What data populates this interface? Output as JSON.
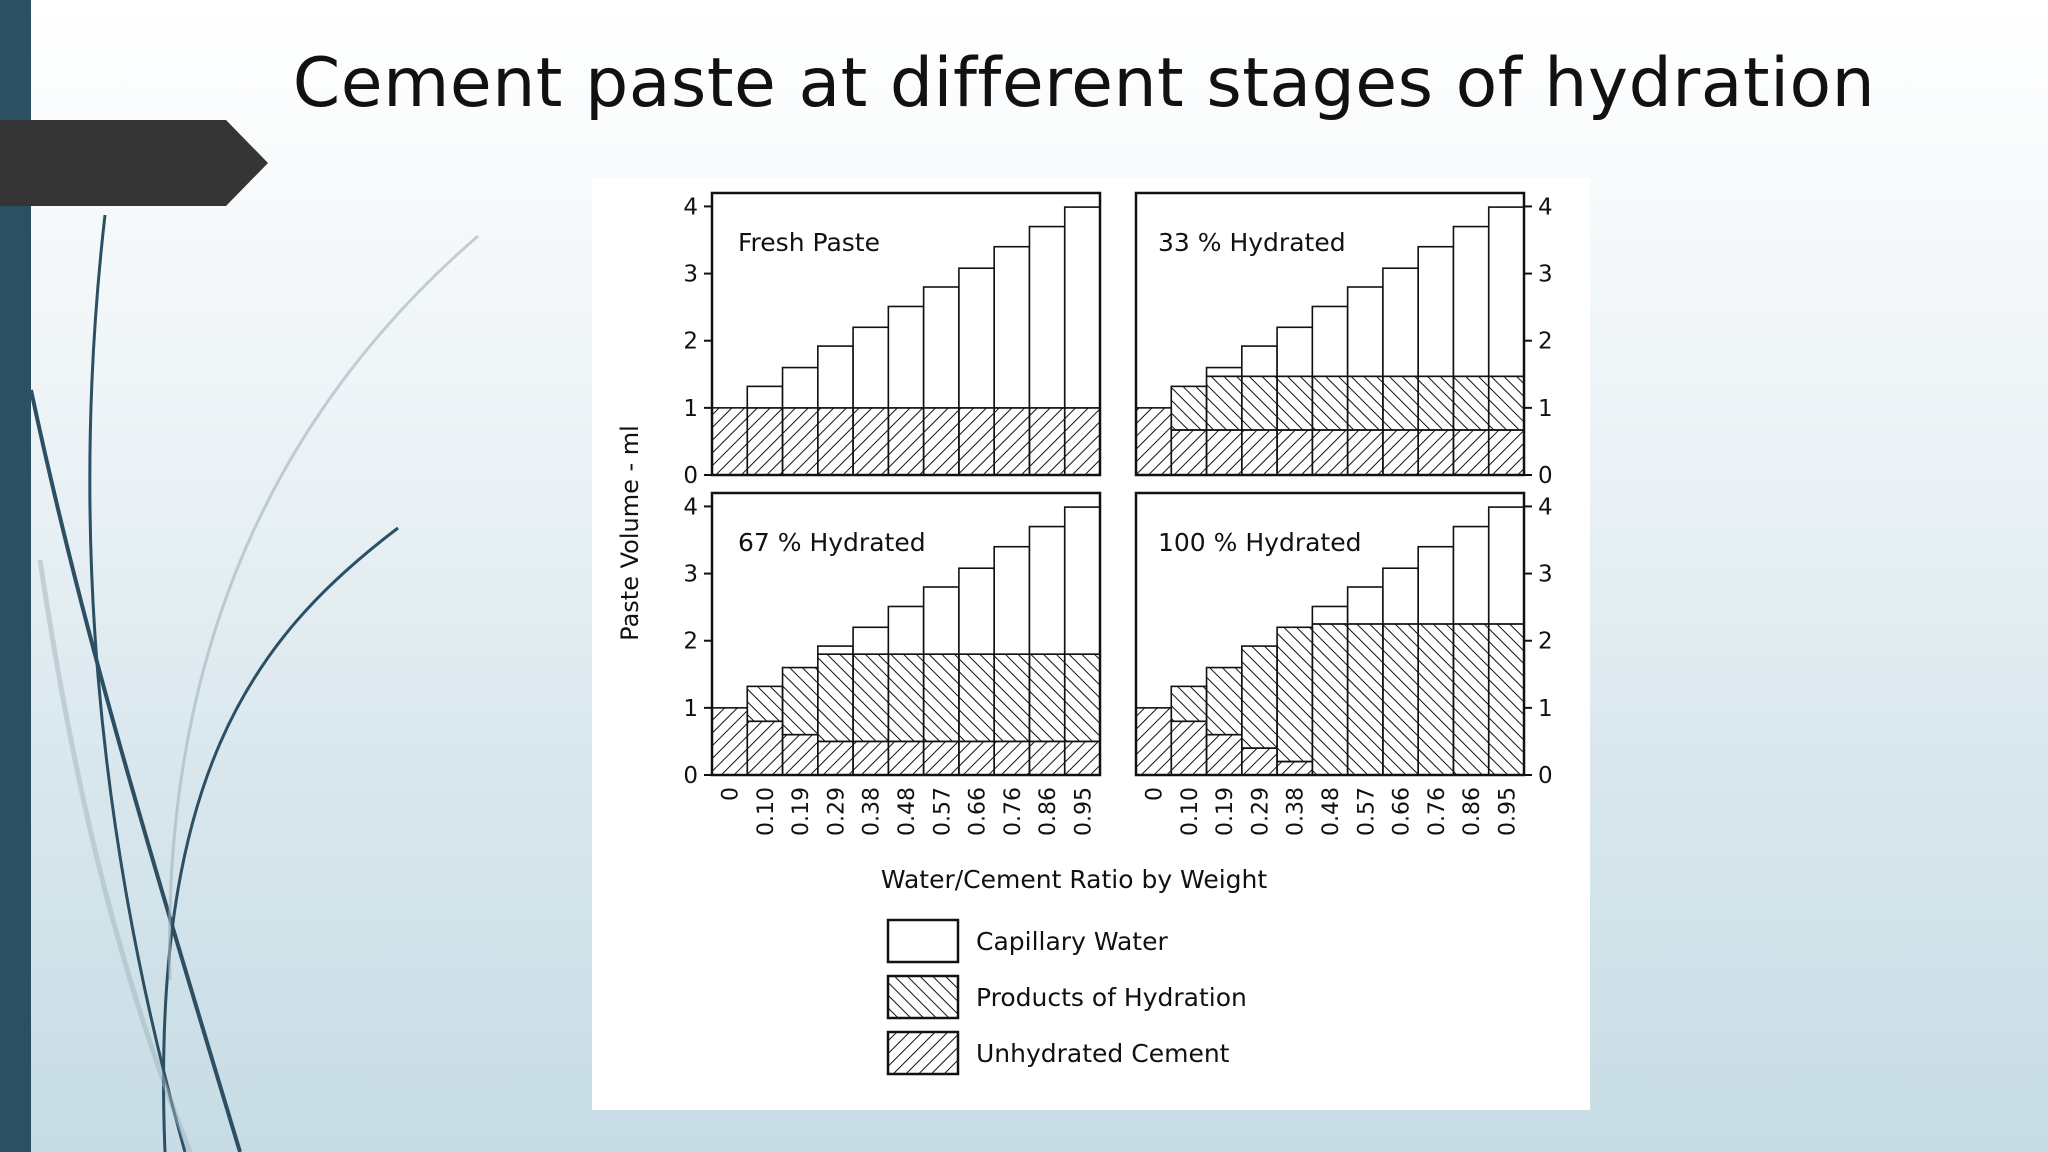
{
  "slide": {
    "title": "Cement paste at different stages of hydration",
    "colors": {
      "accent_bar": "#2c4f63",
      "tab_arrow": "#353535",
      "swoosh": "#2c4f63"
    }
  },
  "chart_data": {
    "type": "bar",
    "y_axis_label": "Paste Volume - ml",
    "x_axis_label": "Water/Cement Ratio by Weight",
    "categories": [
      "0",
      "0.10",
      "0.19",
      "0.29",
      "0.38",
      "0.48",
      "0.57",
      "0.66",
      "0.76",
      "0.86",
      "0.95"
    ],
    "y_ticks": [
      "0",
      "1",
      "2",
      "3",
      "4"
    ],
    "ylim": [
      0,
      4.2
    ],
    "stacked": true,
    "legend": [
      {
        "key": "capillary",
        "label": "Capillary Water"
      },
      {
        "key": "products",
        "label": "Products of Hydration"
      },
      {
        "key": "unhydrated",
        "label": "Unhydrated Cement"
      }
    ],
    "panels": [
      {
        "title": "Fresh Paste",
        "series": [
          {
            "name": "Unhydrated Cement",
            "values": [
              1,
              1,
              1,
              1,
              1,
              1,
              1,
              1,
              1,
              1,
              1
            ]
          },
          {
            "name": "Products of Hydration",
            "values": [
              0,
              0,
              0,
              0,
              0,
              0,
              0,
              0,
              0,
              0,
              0
            ]
          },
          {
            "name": "Capillary Water",
            "values": [
              0,
              0.32,
              0.6,
              0.92,
              1.2,
              1.51,
              1.8,
              2.08,
              2.4,
              2.7,
              2.99
            ]
          }
        ]
      },
      {
        "title": "33 % Hydrated",
        "series": [
          {
            "name": "Unhydrated Cement",
            "values": [
              1,
              0.67,
              0.67,
              0.67,
              0.67,
              0.67,
              0.67,
              0.67,
              0.67,
              0.67,
              0.67
            ]
          },
          {
            "name": "Products of Hydration",
            "values": [
              0,
              0.65,
              0.8,
              0.8,
              0.8,
              0.8,
              0.8,
              0.8,
              0.8,
              0.8,
              0.8
            ]
          },
          {
            "name": "Capillary Water",
            "values": [
              0,
              0,
              0.13,
              0.45,
              0.73,
              1.04,
              1.33,
              1.61,
              1.93,
              2.23,
              2.52
            ]
          }
        ]
      },
      {
        "title": "67 % Hydrated",
        "series": [
          {
            "name": "Unhydrated Cement",
            "values": [
              1,
              0.8,
              0.6,
              0.5,
              0.5,
              0.5,
              0.5,
              0.5,
              0.5,
              0.5,
              0.5
            ]
          },
          {
            "name": "Products of Hydration",
            "values": [
              0,
              0.52,
              1.0,
              1.3,
              1.3,
              1.3,
              1.3,
              1.3,
              1.3,
              1.3,
              1.3
            ]
          },
          {
            "name": "Capillary Water",
            "values": [
              0,
              0,
              0,
              0.12,
              0.4,
              0.71,
              1.0,
              1.28,
              1.6,
              1.9,
              2.19
            ]
          }
        ]
      },
      {
        "title": "100 % Hydrated",
        "series": [
          {
            "name": "Unhydrated Cement",
            "values": [
              1,
              0.8,
              0.6,
              0.4,
              0.2,
              0,
              0,
              0,
              0,
              0,
              0
            ]
          },
          {
            "name": "Products of Hydration",
            "values": [
              0,
              0.52,
              1.0,
              1.52,
              2.0,
              2.25,
              2.25,
              2.25,
              2.25,
              2.25,
              2.25
            ]
          },
          {
            "name": "Capillary Water",
            "values": [
              0,
              0,
              0,
              0,
              0,
              0.26,
              0.55,
              0.83,
              1.15,
              1.45,
              1.74
            ]
          }
        ]
      }
    ]
  }
}
